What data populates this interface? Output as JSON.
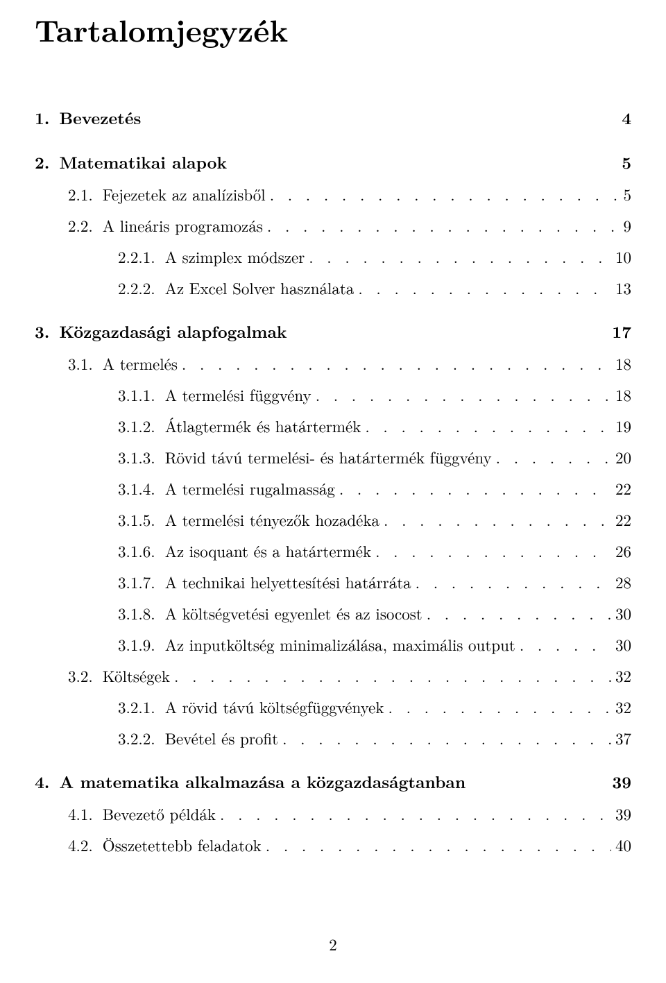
{
  "title": "Tartalomjegyzék",
  "leader_fill": ". . . . . . . . . . . . . . . . . . . . . . . . . . . . . . . . . . . . . . . . . . . . . . . . . . . . . . . . . . . . . . . . . . . . . . . . . . . . . . . . . . . . . . . . . .",
  "entries": [
    {
      "level": "chapter",
      "num": "1.",
      "label": "Bevezetés",
      "page": "4"
    },
    {
      "level": "chapter",
      "num": "2.",
      "label": "Matematikai alapok",
      "page": "5"
    },
    {
      "level": "section",
      "num": "2.1.",
      "label": "Fejezetek az analízisből",
      "page": "5"
    },
    {
      "level": "section",
      "num": "2.2.",
      "label": "A lineáris programozás",
      "page": "9"
    },
    {
      "level": "subsection",
      "num": "2.2.1.",
      "label": "A szimplex módszer",
      "page": "10"
    },
    {
      "level": "subsection",
      "num": "2.2.2.",
      "label": "Az Excel Solver használata",
      "page": "13"
    },
    {
      "level": "chapter",
      "num": "3.",
      "label": "Közgazdasági alapfogalmak",
      "page": "17"
    },
    {
      "level": "section",
      "num": "3.1.",
      "label": "A termelés",
      "page": "18"
    },
    {
      "level": "subsection",
      "num": "3.1.1.",
      "label": "A termelési függvény",
      "page": "18"
    },
    {
      "level": "subsection",
      "num": "3.1.2.",
      "label": "Átlagtermék és határtermék",
      "page": "19"
    },
    {
      "level": "subsection",
      "num": "3.1.3.",
      "label": "Rövid távú termelési- és határtermék függvény",
      "page": "20"
    },
    {
      "level": "subsection",
      "num": "3.1.4.",
      "label": "A termelési rugalmasság",
      "page": "22"
    },
    {
      "level": "subsection",
      "num": "3.1.5.",
      "label": "A termelési tényezők hozadéka",
      "page": "22"
    },
    {
      "level": "subsection",
      "num": "3.1.6.",
      "label": "Az isoquant és a határtermék",
      "page": "26"
    },
    {
      "level": "subsection",
      "num": "3.1.7.",
      "label": "A technikai helyettesítési határráta",
      "page": "28"
    },
    {
      "level": "subsection",
      "num": "3.1.8.",
      "label": "A költségvetési egyenlet és az isocost",
      "page": "30"
    },
    {
      "level": "subsection",
      "num": "3.1.9.",
      "label": "Az inputköltség minimalizálása, maximális output",
      "page": "30"
    },
    {
      "level": "section",
      "num": "3.2.",
      "label": "Költségek",
      "page": "32"
    },
    {
      "level": "subsection",
      "num": "3.2.1.",
      "label": "A rövid távú költségfüggvények",
      "page": "32"
    },
    {
      "level": "subsection",
      "num": "3.2.2.",
      "label": "Bevétel és profit",
      "page": "37"
    },
    {
      "level": "chapter",
      "num": "4.",
      "label": "A matematika alkalmazása a közgazdaságtanban",
      "page": "39"
    },
    {
      "level": "section",
      "num": "4.1.",
      "label": "Bevezető példák",
      "page": "39"
    },
    {
      "level": "section",
      "num": "4.2.",
      "label": "Összetettebb feladatok",
      "page": "40"
    }
  ],
  "page_number": "2"
}
